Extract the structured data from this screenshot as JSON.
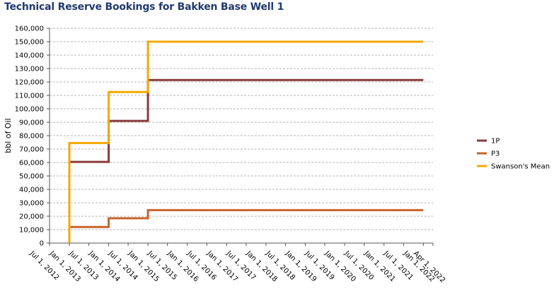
{
  "chart_data": {
    "type": "line",
    "title": "Technical Reserve Bookings for Bakken Base Well 1",
    "ylabel": "bbl of Oil",
    "xlabel": "",
    "ylim": [
      0,
      160000
    ],
    "yticks": [
      0,
      10000,
      20000,
      30000,
      40000,
      50000,
      60000,
      70000,
      80000,
      90000,
      100000,
      110000,
      120000,
      130000,
      140000,
      150000,
      160000
    ],
    "ytick_labels": [
      "0",
      "10,000",
      "20,000",
      "30,000",
      "40,000",
      "50,000",
      "60,000",
      "70,000",
      "80,000",
      "90,000",
      "100,000",
      "110,000",
      "120,000",
      "130,000",
      "140,000",
      "150,000",
      "160,000"
    ],
    "xticks": [
      "2012-07-01",
      "2013-01-01",
      "2013-07-01",
      "2014-01-01",
      "2014-07-01",
      "2015-01-01",
      "2015-07-01",
      "2016-01-01",
      "2016-07-01",
      "2017-01-01",
      "2017-07-01",
      "2018-01-01",
      "2018-07-01",
      "2019-01-01",
      "2019-07-01",
      "2020-01-01",
      "2020-07-01",
      "2021-01-01",
      "2021-07-01",
      "2022-01-01",
      "2022-04-01"
    ],
    "xtick_labels": [
      "Jul 1, 2012",
      "Jan 1, 2013",
      "Jul 1, 2013",
      "Jan 1, 2014",
      "Jul 1, 2014",
      "Jan 1, 2015",
      "Jul 1, 2015",
      "Jan 1, 2016",
      "Jul 1, 2016",
      "Jan 1, 2017",
      "Jul 1, 2017",
      "Jan 1, 2018",
      "Jul 1, 2018",
      "Jan 1, 2019",
      "Jul 1, 2019",
      "Jan 1, 2020",
      "Jul 1, 2020",
      "Jan 1, 2021",
      "Jul 1, 2021",
      "Jan 1, 2022",
      "Apr 1, 2022"
    ],
    "grid": true,
    "legend_position": "right",
    "step": true,
    "series": [
      {
        "name": "1P",
        "color": "#8b3a3a",
        "points": [
          [
            "2013-01-01",
            60500
          ],
          [
            "2014-01-01",
            91000
          ],
          [
            "2015-01-01",
            121500
          ],
          [
            "2022-01-01",
            121500
          ]
        ]
      },
      {
        "name": "P3",
        "color": "#c8642a",
        "points": [
          [
            "2013-01-01",
            12000
          ],
          [
            "2014-01-01",
            18500
          ],
          [
            "2015-01-01",
            24500
          ],
          [
            "2022-01-01",
            24500
          ]
        ]
      },
      {
        "name": "Swanson's Mean",
        "color": "#f5a800",
        "points": [
          [
            "2013-01-01",
            0
          ],
          [
            "2013-01-01",
            74500
          ],
          [
            "2014-01-01",
            112500
          ],
          [
            "2015-01-01",
            150000
          ],
          [
            "2022-01-01",
            150000
          ]
        ]
      }
    ]
  }
}
